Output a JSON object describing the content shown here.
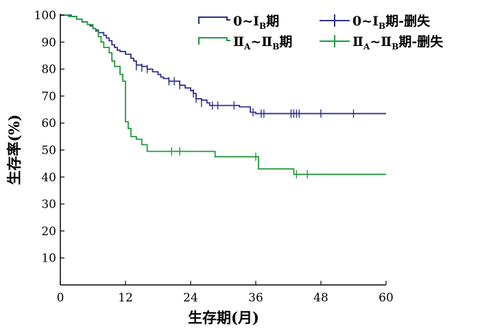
{
  "chart_data": {
    "type": "line",
    "subtype": "kaplan-meier",
    "title": "",
    "xlabel": "生存期(月)",
    "ylabel": "生存率(%)",
    "xlim": [
      0,
      60
    ],
    "ylim": [
      0,
      100
    ],
    "xticks": [
      0,
      12,
      24,
      36,
      48,
      60
    ],
    "yticks": [
      10,
      20,
      30,
      40,
      50,
      60,
      70,
      80,
      90,
      100
    ],
    "grid": false,
    "legend_position": "top-right",
    "series": [
      {
        "name": "0~ⅠB期",
        "legend": {
          "prefix": "0~Ⅰ",
          "sub": "B",
          "suffix": "期"
        },
        "color": "#2f2f8c",
        "steps": [
          [
            0,
            100
          ],
          [
            1,
            100
          ],
          [
            2,
            99.5
          ],
          [
            3,
            98.5
          ],
          [
            4,
            97.5
          ],
          [
            5,
            96.5
          ],
          [
            5.5,
            96
          ],
          [
            6,
            95
          ],
          [
            6.5,
            94.5
          ],
          [
            7,
            93.5
          ],
          [
            8,
            92.5
          ],
          [
            8.5,
            91.5
          ],
          [
            9,
            90.5
          ],
          [
            9.5,
            89
          ],
          [
            10,
            88
          ],
          [
            10.5,
            87
          ],
          [
            11,
            86.5
          ],
          [
            12,
            85.5
          ],
          [
            13,
            84
          ],
          [
            13.5,
            83
          ],
          [
            14,
            81.5
          ],
          [
            15,
            81
          ],
          [
            16,
            80
          ],
          [
            17,
            79
          ],
          [
            18,
            78
          ],
          [
            18.5,
            77
          ],
          [
            19,
            76.5
          ],
          [
            20,
            75.5
          ],
          [
            22,
            74
          ],
          [
            23,
            73
          ],
          [
            24,
            72
          ],
          [
            24.5,
            71
          ],
          [
            25,
            69
          ],
          [
            26,
            68.5
          ],
          [
            27,
            67.5
          ],
          [
            27.5,
            66.5
          ],
          [
            30,
            66.5
          ],
          [
            33,
            66
          ],
          [
            35,
            64
          ],
          [
            36,
            63.5
          ],
          [
            60,
            63.5
          ]
        ],
        "censored": [
          [
            14,
            81
          ],
          [
            15,
            80.5
          ],
          [
            16,
            80
          ],
          [
            20,
            75.5
          ],
          [
            21,
            75.5
          ],
          [
            22,
            74
          ],
          [
            24.5,
            71
          ],
          [
            25,
            69
          ],
          [
            26,
            67.5
          ],
          [
            28,
            66.5
          ],
          [
            29,
            66.5
          ],
          [
            32,
            66.5
          ],
          [
            35.5,
            64
          ],
          [
            37,
            63.5
          ],
          [
            37.5,
            63.5
          ],
          [
            42.5,
            63.5
          ],
          [
            43,
            63.5
          ],
          [
            43.5,
            63.5
          ],
          [
            44,
            63.5
          ],
          [
            48,
            63.5
          ],
          [
            54,
            63.5
          ]
        ]
      },
      {
        "name": "ⅡA~ⅡB期",
        "legend": {
          "prefix": "Ⅱ",
          "sub1": "A",
          "mid": "~Ⅱ",
          "sub": "B",
          "suffix": "期"
        },
        "color": "#1f9a3a",
        "steps": [
          [
            0,
            100
          ],
          [
            1.5,
            99.5
          ],
          [
            3,
            98.5
          ],
          [
            4,
            97.5
          ],
          [
            5,
            96.5
          ],
          [
            6,
            95
          ],
          [
            6.5,
            94
          ],
          [
            7,
            92
          ],
          [
            7.5,
            90
          ],
          [
            8,
            88
          ],
          [
            9,
            86
          ],
          [
            9.5,
            83
          ],
          [
            10,
            81
          ],
          [
            11,
            78
          ],
          [
            11.5,
            75.5
          ],
          [
            12,
            60.5
          ],
          [
            12.5,
            58
          ],
          [
            13,
            55
          ],
          [
            14,
            54
          ],
          [
            15,
            52
          ],
          [
            16,
            49.5
          ],
          [
            28.5,
            47.5
          ],
          [
            36.5,
            43
          ],
          [
            43,
            41
          ],
          [
            60,
            41
          ]
        ],
        "censored": [
          [
            20.5,
            49.5
          ],
          [
            22,
            49.5
          ],
          [
            36,
            47.5
          ],
          [
            43.5,
            41
          ],
          [
            45.5,
            41
          ]
        ]
      }
    ],
    "legend_censored_suffix": "期-删失"
  }
}
